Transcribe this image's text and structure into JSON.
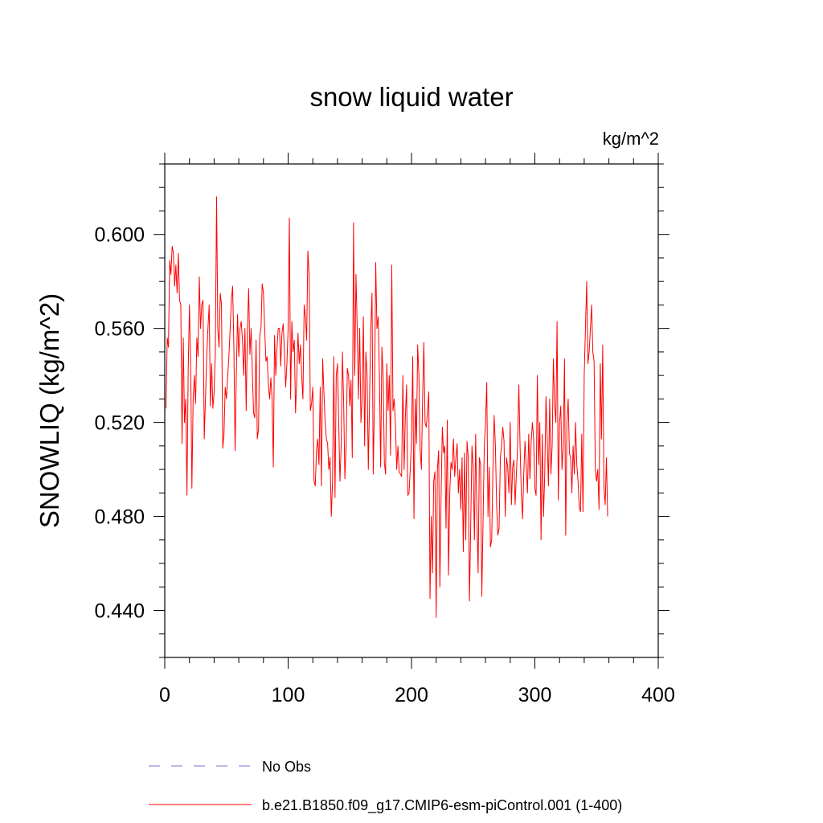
{
  "chart_data": {
    "type": "line",
    "title": "snow liquid water",
    "units_label": "kg/m^2",
    "xlabel": "",
    "ylabel": "SNOWLIQ  (kg/m^2)",
    "xlim": [
      0,
      400
    ],
    "ylim": [
      0.42,
      0.63
    ],
    "x_ticks": [
      0,
      100,
      200,
      300,
      400
    ],
    "x_tick_labels": [
      "0",
      "100",
      "200",
      "300",
      "400"
    ],
    "y_ticks": [
      0.44,
      0.48,
      0.52,
      0.56,
      0.6
    ],
    "y_tick_labels": [
      "0.440",
      "0.480",
      "0.520",
      "0.560",
      "0.600"
    ],
    "grid": false,
    "legend_position": "bottom",
    "legend": [
      {
        "name": "No Obs",
        "color": "#7777cc",
        "style": "dashed"
      },
      {
        "name": "b.e21.B1850.f09_g17.CMIP6-esm-piControl.001 (1-400)",
        "color": "#ff0000",
        "style": "solid"
      }
    ],
    "series": [
      {
        "name": "b.e21.B1850.f09_g17.CMIP6-esm-piControl.001 (1-400)",
        "color": "#ff0000",
        "x_start": 1,
        "x_step": 1,
        "values": [
          0.526,
          0.556,
          0.552,
          0.589,
          0.583,
          0.595,
          0.592,
          0.578,
          0.587,
          0.575,
          0.592,
          0.572,
          0.57,
          0.511,
          0.556,
          0.52,
          0.53,
          0.489,
          0.542,
          0.57,
          0.545,
          0.492,
          0.53,
          0.54,
          0.528,
          0.556,
          0.548,
          0.582,
          0.56,
          0.57,
          0.572,
          0.513,
          0.53,
          0.548,
          0.56,
          0.57,
          0.527,
          0.545,
          0.526,
          0.533,
          0.55,
          0.616,
          0.56,
          0.552,
          0.575,
          0.57,
          0.509,
          0.515,
          0.535,
          0.53,
          0.54,
          0.548,
          0.56,
          0.572,
          0.578,
          0.553,
          0.508,
          0.54,
          0.566,
          0.548,
          0.56,
          0.563,
          0.555,
          0.54,
          0.56,
          0.525,
          0.56,
          0.577,
          0.549,
          0.56,
          0.541,
          0.524,
          0.522,
          0.555,
          0.513,
          0.517,
          0.557,
          0.56,
          0.579,
          0.575,
          0.56,
          0.546,
          0.548,
          0.536,
          0.53,
          0.539,
          0.53,
          0.501,
          0.557,
          0.54,
          0.552,
          0.56,
          0.56,
          0.544,
          0.558,
          0.562,
          0.55,
          0.535,
          0.545,
          0.56,
          0.607,
          0.53,
          0.563,
          0.55,
          0.555,
          0.524,
          0.539,
          0.558,
          0.545,
          0.553,
          0.54,
          0.53,
          0.57,
          0.565,
          0.555,
          0.593,
          0.583,
          0.525,
          0.528,
          0.535,
          0.495,
          0.493,
          0.508,
          0.513,
          0.502,
          0.535,
          0.493,
          0.547,
          0.533,
          0.52,
          0.513,
          0.511,
          0.5,
          0.505,
          0.48,
          0.495,
          0.548,
          0.488,
          0.54,
          0.545,
          0.52,
          0.495,
          0.51,
          0.55,
          0.529,
          0.496,
          0.51,
          0.543,
          0.54,
          0.527,
          0.538,
          0.505,
          0.605,
          0.54,
          0.583,
          0.56,
          0.53,
          0.56,
          0.52,
          0.53,
          0.565,
          0.51,
          0.55,
          0.54,
          0.5,
          0.53,
          0.56,
          0.575,
          0.498,
          0.53,
          0.588,
          0.56,
          0.565,
          0.54,
          0.501,
          0.552,
          0.54,
          0.503,
          0.498,
          0.545,
          0.525,
          0.54,
          0.506,
          0.587,
          0.525,
          0.53,
          0.519,
          0.5,
          0.51,
          0.499,
          0.498,
          0.497,
          0.54,
          0.5,
          0.522,
          0.536,
          0.489,
          0.49,
          0.5,
          0.512,
          0.548,
          0.479,
          0.53,
          0.511,
          0.553,
          0.54,
          0.509,
          0.5,
          0.53,
          0.554,
          0.52,
          0.518,
          0.525,
          0.533,
          0.445,
          0.48,
          0.456,
          0.495,
          0.499,
          0.437,
          0.5,
          0.508,
          0.45,
          0.489,
          0.518,
          0.507,
          0.51,
          0.475,
          0.521,
          0.455,
          0.49,
          0.503,
          0.5,
          0.513,
          0.497,
          0.505,
          0.511,
          0.49,
          0.5,
          0.483,
          0.505,
          0.465,
          0.507,
          0.47,
          0.512,
          0.505,
          0.444,
          0.476,
          0.51,
          0.501,
          0.47,
          0.515,
          0.48,
          0.456,
          0.505,
          0.502,
          0.446,
          0.478,
          0.51,
          0.52,
          0.537,
          0.48,
          0.501,
          0.467,
          0.47,
          0.5,
          0.523,
          0.51,
          0.485,
          0.472,
          0.475,
          0.505,
          0.51,
          0.518,
          0.512,
          0.48,
          0.505,
          0.501,
          0.49,
          0.52,
          0.485,
          0.501,
          0.504,
          0.485,
          0.498,
          0.51,
          0.536,
          0.51,
          0.49,
          0.479,
          0.498,
          0.512,
          0.501,
          0.49,
          0.515,
          0.496,
          0.512,
          0.52,
          0.513,
          0.492,
          0.489,
          0.54,
          0.502,
          0.52,
          0.47,
          0.515,
          0.48,
          0.498,
          0.531,
          0.513,
          0.493,
          0.53,
          0.498,
          0.51,
          0.547,
          0.528,
          0.52,
          0.563,
          0.487,
          0.52,
          0.527,
          0.5,
          0.51,
          0.547,
          0.472,
          0.52,
          0.53,
          0.507,
          0.505,
          0.49,
          0.51,
          0.498,
          0.52,
          0.502,
          0.495,
          0.484,
          0.482,
          0.515,
          0.482,
          0.54,
          0.56,
          0.58,
          0.545,
          0.55,
          0.56,
          0.57,
          0.55,
          0.546,
          0.5,
          0.495,
          0.5,
          0.483,
          0.545,
          0.513,
          0.553,
          0.492,
          0.485,
          0.505,
          0.48
        ]
      }
    ]
  }
}
